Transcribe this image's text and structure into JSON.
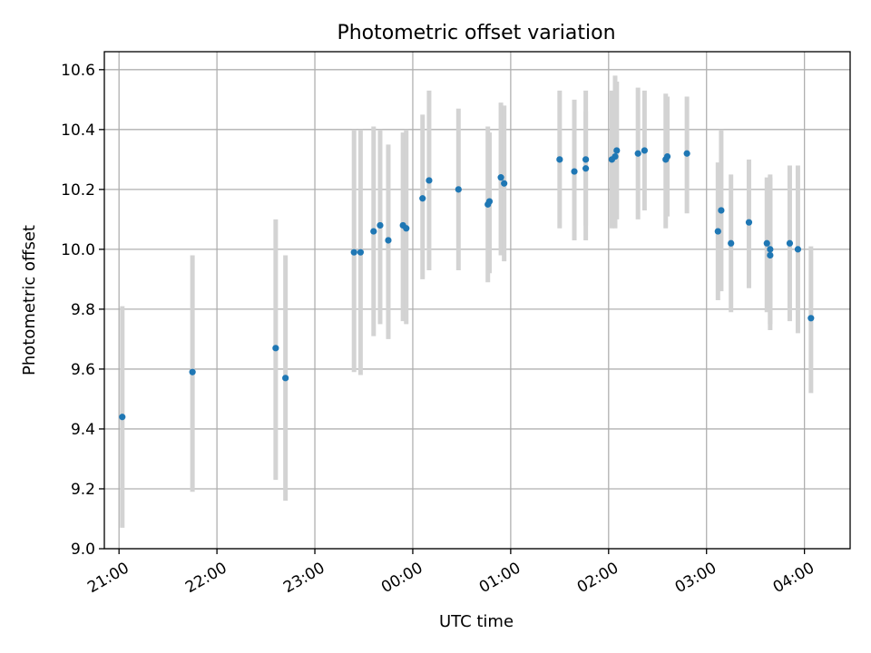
{
  "chart_data": {
    "type": "scatter",
    "title": "Photometric offset variation",
    "xlabel": "UTC time",
    "ylabel": "Photometric offset",
    "x_unit": "UTC time",
    "xlim": [
      "20:51",
      "04:28"
    ],
    "ylim": [
      9.0,
      10.66
    ],
    "x_ticks": [
      "21:00",
      "22:00",
      "23:00",
      "00:00",
      "01:00",
      "02:00",
      "03:00",
      "04:00"
    ],
    "y_ticks": [
      "9.0",
      "9.2",
      "9.4",
      "9.6",
      "9.8",
      "10.0",
      "10.2",
      "10.4",
      "10.6"
    ],
    "grid": true,
    "marker_color": "#1f77b4",
    "errorbar_color": "#d3d3d3",
    "points": [
      {
        "t": "21:02",
        "y": 9.44,
        "lo": 9.07,
        "hi": 9.81
      },
      {
        "t": "21:45",
        "y": 9.59,
        "lo": 9.19,
        "hi": 9.98
      },
      {
        "t": "22:36",
        "y": 9.67,
        "lo": 9.23,
        "hi": 10.1
      },
      {
        "t": "22:42",
        "y": 9.57,
        "lo": 9.16,
        "hi": 9.98
      },
      {
        "t": "23:24",
        "y": 9.99,
        "lo": 9.59,
        "hi": 10.4
      },
      {
        "t": "23:28",
        "y": 9.99,
        "lo": 9.58,
        "hi": 10.4
      },
      {
        "t": "23:36",
        "y": 10.06,
        "lo": 9.71,
        "hi": 10.41
      },
      {
        "t": "23:40",
        "y": 10.08,
        "lo": 9.75,
        "hi": 10.4
      },
      {
        "t": "23:45",
        "y": 10.03,
        "lo": 9.7,
        "hi": 10.35
      },
      {
        "t": "23:54",
        "y": 10.08,
        "lo": 9.76,
        "hi": 10.39
      },
      {
        "t": "23:56",
        "y": 10.07,
        "lo": 9.75,
        "hi": 10.4
      },
      {
        "t": "00:06",
        "y": 10.17,
        "lo": 9.9,
        "hi": 10.45
      },
      {
        "t": "00:10",
        "y": 10.23,
        "lo": 9.93,
        "hi": 10.53
      },
      {
        "t": "00:28",
        "y": 10.2,
        "lo": 9.93,
        "hi": 10.47
      },
      {
        "t": "00:46",
        "y": 10.15,
        "lo": 9.89,
        "hi": 10.41
      },
      {
        "t": "00:47",
        "y": 10.16,
        "lo": 9.92,
        "hi": 10.39
      },
      {
        "t": "00:54",
        "y": 10.24,
        "lo": 9.98,
        "hi": 10.49
      },
      {
        "t": "00:56",
        "y": 10.22,
        "lo": 9.96,
        "hi": 10.48
      },
      {
        "t": "01:30",
        "y": 10.3,
        "lo": 10.07,
        "hi": 10.53
      },
      {
        "t": "01:39",
        "y": 10.26,
        "lo": 10.03,
        "hi": 10.5
      },
      {
        "t": "01:46",
        "y": 10.3,
        "lo": 10.03,
        "hi": 10.53
      },
      {
        "t": "01:46",
        "y": 10.27,
        "lo": 10.08,
        "hi": 10.46
      },
      {
        "t": "02:02",
        "y": 10.3,
        "lo": 10.07,
        "hi": 10.53
      },
      {
        "t": "02:04",
        "y": 10.31,
        "lo": 10.07,
        "hi": 10.58
      },
      {
        "t": "02:05",
        "y": 10.33,
        "lo": 10.1,
        "hi": 10.56
      },
      {
        "t": "02:18",
        "y": 10.32,
        "lo": 10.1,
        "hi": 10.54
      },
      {
        "t": "02:22",
        "y": 10.33,
        "lo": 10.13,
        "hi": 10.53
      },
      {
        "t": "02:35",
        "y": 10.3,
        "lo": 10.07,
        "hi": 10.52
      },
      {
        "t": "02:36",
        "y": 10.31,
        "lo": 10.11,
        "hi": 10.51
      },
      {
        "t": "02:48",
        "y": 10.32,
        "lo": 10.12,
        "hi": 10.51
      },
      {
        "t": "03:07",
        "y": 10.06,
        "lo": 9.83,
        "hi": 10.29
      },
      {
        "t": "03:09",
        "y": 10.13,
        "lo": 9.86,
        "hi": 10.4
      },
      {
        "t": "03:15",
        "y": 10.02,
        "lo": 9.79,
        "hi": 10.25
      },
      {
        "t": "03:26",
        "y": 10.09,
        "lo": 9.87,
        "hi": 10.3
      },
      {
        "t": "03:37",
        "y": 10.02,
        "lo": 9.79,
        "hi": 10.24
      },
      {
        "t": "03:39",
        "y": 9.98,
        "lo": 9.73,
        "hi": 10.24
      },
      {
        "t": "03:39",
        "y": 10.0,
        "lo": 9.75,
        "hi": 10.25
      },
      {
        "t": "03:51",
        "y": 10.02,
        "lo": 9.76,
        "hi": 10.28
      },
      {
        "t": "03:56",
        "y": 10.0,
        "lo": 9.72,
        "hi": 10.28
      },
      {
        "t": "04:04",
        "y": 9.77,
        "lo": 9.52,
        "hi": 10.01
      }
    ]
  }
}
